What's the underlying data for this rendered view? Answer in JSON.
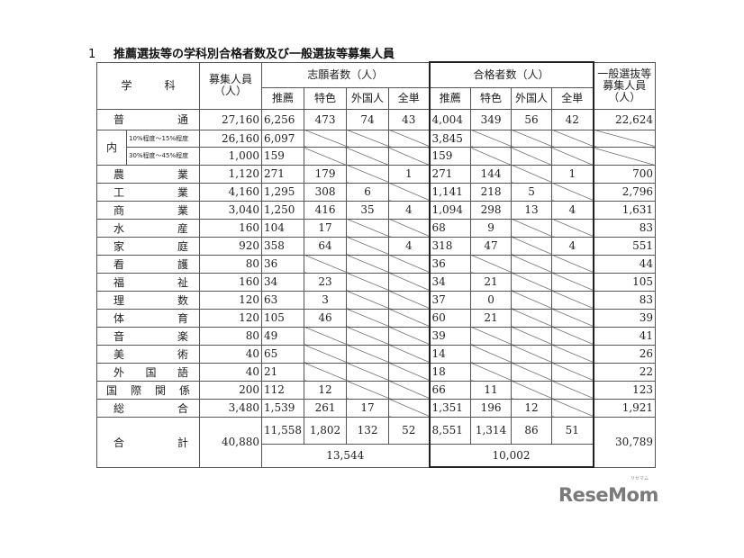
{
  "title": {
    "number": "1",
    "text": "推薦選抜等の学科別合格者数及び一般選抜等募集人員"
  },
  "headers": {
    "subject": "学　　　科",
    "capacity": "募集人員（人）",
    "applicants": "志願者数（人）",
    "passed": "合格者数（人）",
    "general": "一般選抜等募集人員（人）",
    "sub": [
      "推薦",
      "特色",
      "外国人",
      "全単"
    ]
  },
  "rows": [
    {
      "label": "普通",
      "capacity": "27,160",
      "applicants": [
        "6,256",
        "473",
        "74",
        "43"
      ],
      "passed": [
        "4,004",
        "349",
        "56",
        "42"
      ],
      "general": "22,624"
    },
    {
      "label": "農業",
      "capacity": "1,120",
      "applicants": [
        "271",
        "179",
        null,
        "1"
      ],
      "passed": [
        "271",
        "144",
        null,
        "1"
      ],
      "general": "700"
    },
    {
      "label": "工業",
      "capacity": "4,160",
      "applicants": [
        "1,295",
        "308",
        "6",
        null
      ],
      "passed": [
        "1,141",
        "218",
        "5",
        null
      ],
      "general": "2,796"
    },
    {
      "label": "商業",
      "capacity": "3,040",
      "applicants": [
        "1,250",
        "416",
        "35",
        "4"
      ],
      "passed": [
        "1,094",
        "298",
        "13",
        "4"
      ],
      "general": "1,631"
    },
    {
      "label": "水産",
      "capacity": "160",
      "applicants": [
        "104",
        "17",
        null,
        null
      ],
      "passed": [
        "68",
        "9",
        null,
        null
      ],
      "general": "83"
    },
    {
      "label": "家庭",
      "capacity": "920",
      "applicants": [
        "358",
        "64",
        null,
        "4"
      ],
      "passed": [
        "318",
        "47",
        null,
        "4"
      ],
      "general": "551"
    },
    {
      "label": "看護",
      "capacity": "80",
      "applicants": [
        "36",
        null,
        null,
        null
      ],
      "passed": [
        "36",
        null,
        null,
        null
      ],
      "general": "44"
    },
    {
      "label": "福祉",
      "capacity": "160",
      "applicants": [
        "34",
        "23",
        null,
        null
      ],
      "passed": [
        "34",
        "21",
        null,
        null
      ],
      "general": "105"
    },
    {
      "label": "理数",
      "capacity": "120",
      "applicants": [
        "63",
        "3",
        null,
        null
      ],
      "passed": [
        "37",
        "0",
        null,
        null
      ],
      "general": "83"
    },
    {
      "label": "体育",
      "capacity": "120",
      "applicants": [
        "105",
        "46",
        null,
        null
      ],
      "passed": [
        "60",
        "21",
        null,
        null
      ],
      "general": "39"
    },
    {
      "label": "音楽",
      "capacity": "80",
      "applicants": [
        "49",
        null,
        null,
        null
      ],
      "passed": [
        "39",
        null,
        null,
        null
      ],
      "general": "41"
    },
    {
      "label": "美術",
      "capacity": "40",
      "applicants": [
        "65",
        null,
        null,
        null
      ],
      "passed": [
        "14",
        null,
        null,
        null
      ],
      "general": "26"
    },
    {
      "label": "外国語",
      "capacity": "40",
      "applicants": [
        "21",
        null,
        null,
        null
      ],
      "passed": [
        "18",
        null,
        null,
        null
      ],
      "general": "22"
    },
    {
      "label": "国際関係",
      "capacity": "200",
      "applicants": [
        "112",
        "12",
        null,
        null
      ],
      "passed": [
        "66",
        "11",
        null,
        null
      ],
      "general": "123"
    },
    {
      "label": "総合",
      "capacity": "3,480",
      "applicants": [
        "1,539",
        "261",
        "17",
        null
      ],
      "passed": [
        "1,351",
        "196",
        "12",
        null
      ],
      "general": "1,921"
    }
  ],
  "breakdown": {
    "label": "内",
    "rows": [
      {
        "label": "10%程度～15%程度",
        "capacity": "26,160",
        "applicants": [
          "6,097",
          null,
          null,
          null
        ],
        "passed": [
          "3,845",
          null,
          null,
          null
        ],
        "general": null
      },
      {
        "label": "30%程度～45%程度",
        "capacity": "1,000",
        "applicants": [
          "159",
          null,
          null,
          null
        ],
        "passed": [
          "159",
          null,
          null,
          null
        ],
        "general": null
      }
    ]
  },
  "total": {
    "label": "合計",
    "capacity": "40,880",
    "applicants": [
      "11,558",
      "1,802",
      "132",
      "52"
    ],
    "passed": [
      "8,551",
      "1,314",
      "86",
      "51"
    ],
    "applicants_sum": "13,544",
    "passed_sum": "10,002",
    "general": "30,789"
  },
  "logo": {
    "text": "ReseMom",
    "sub": "リセマム"
  }
}
